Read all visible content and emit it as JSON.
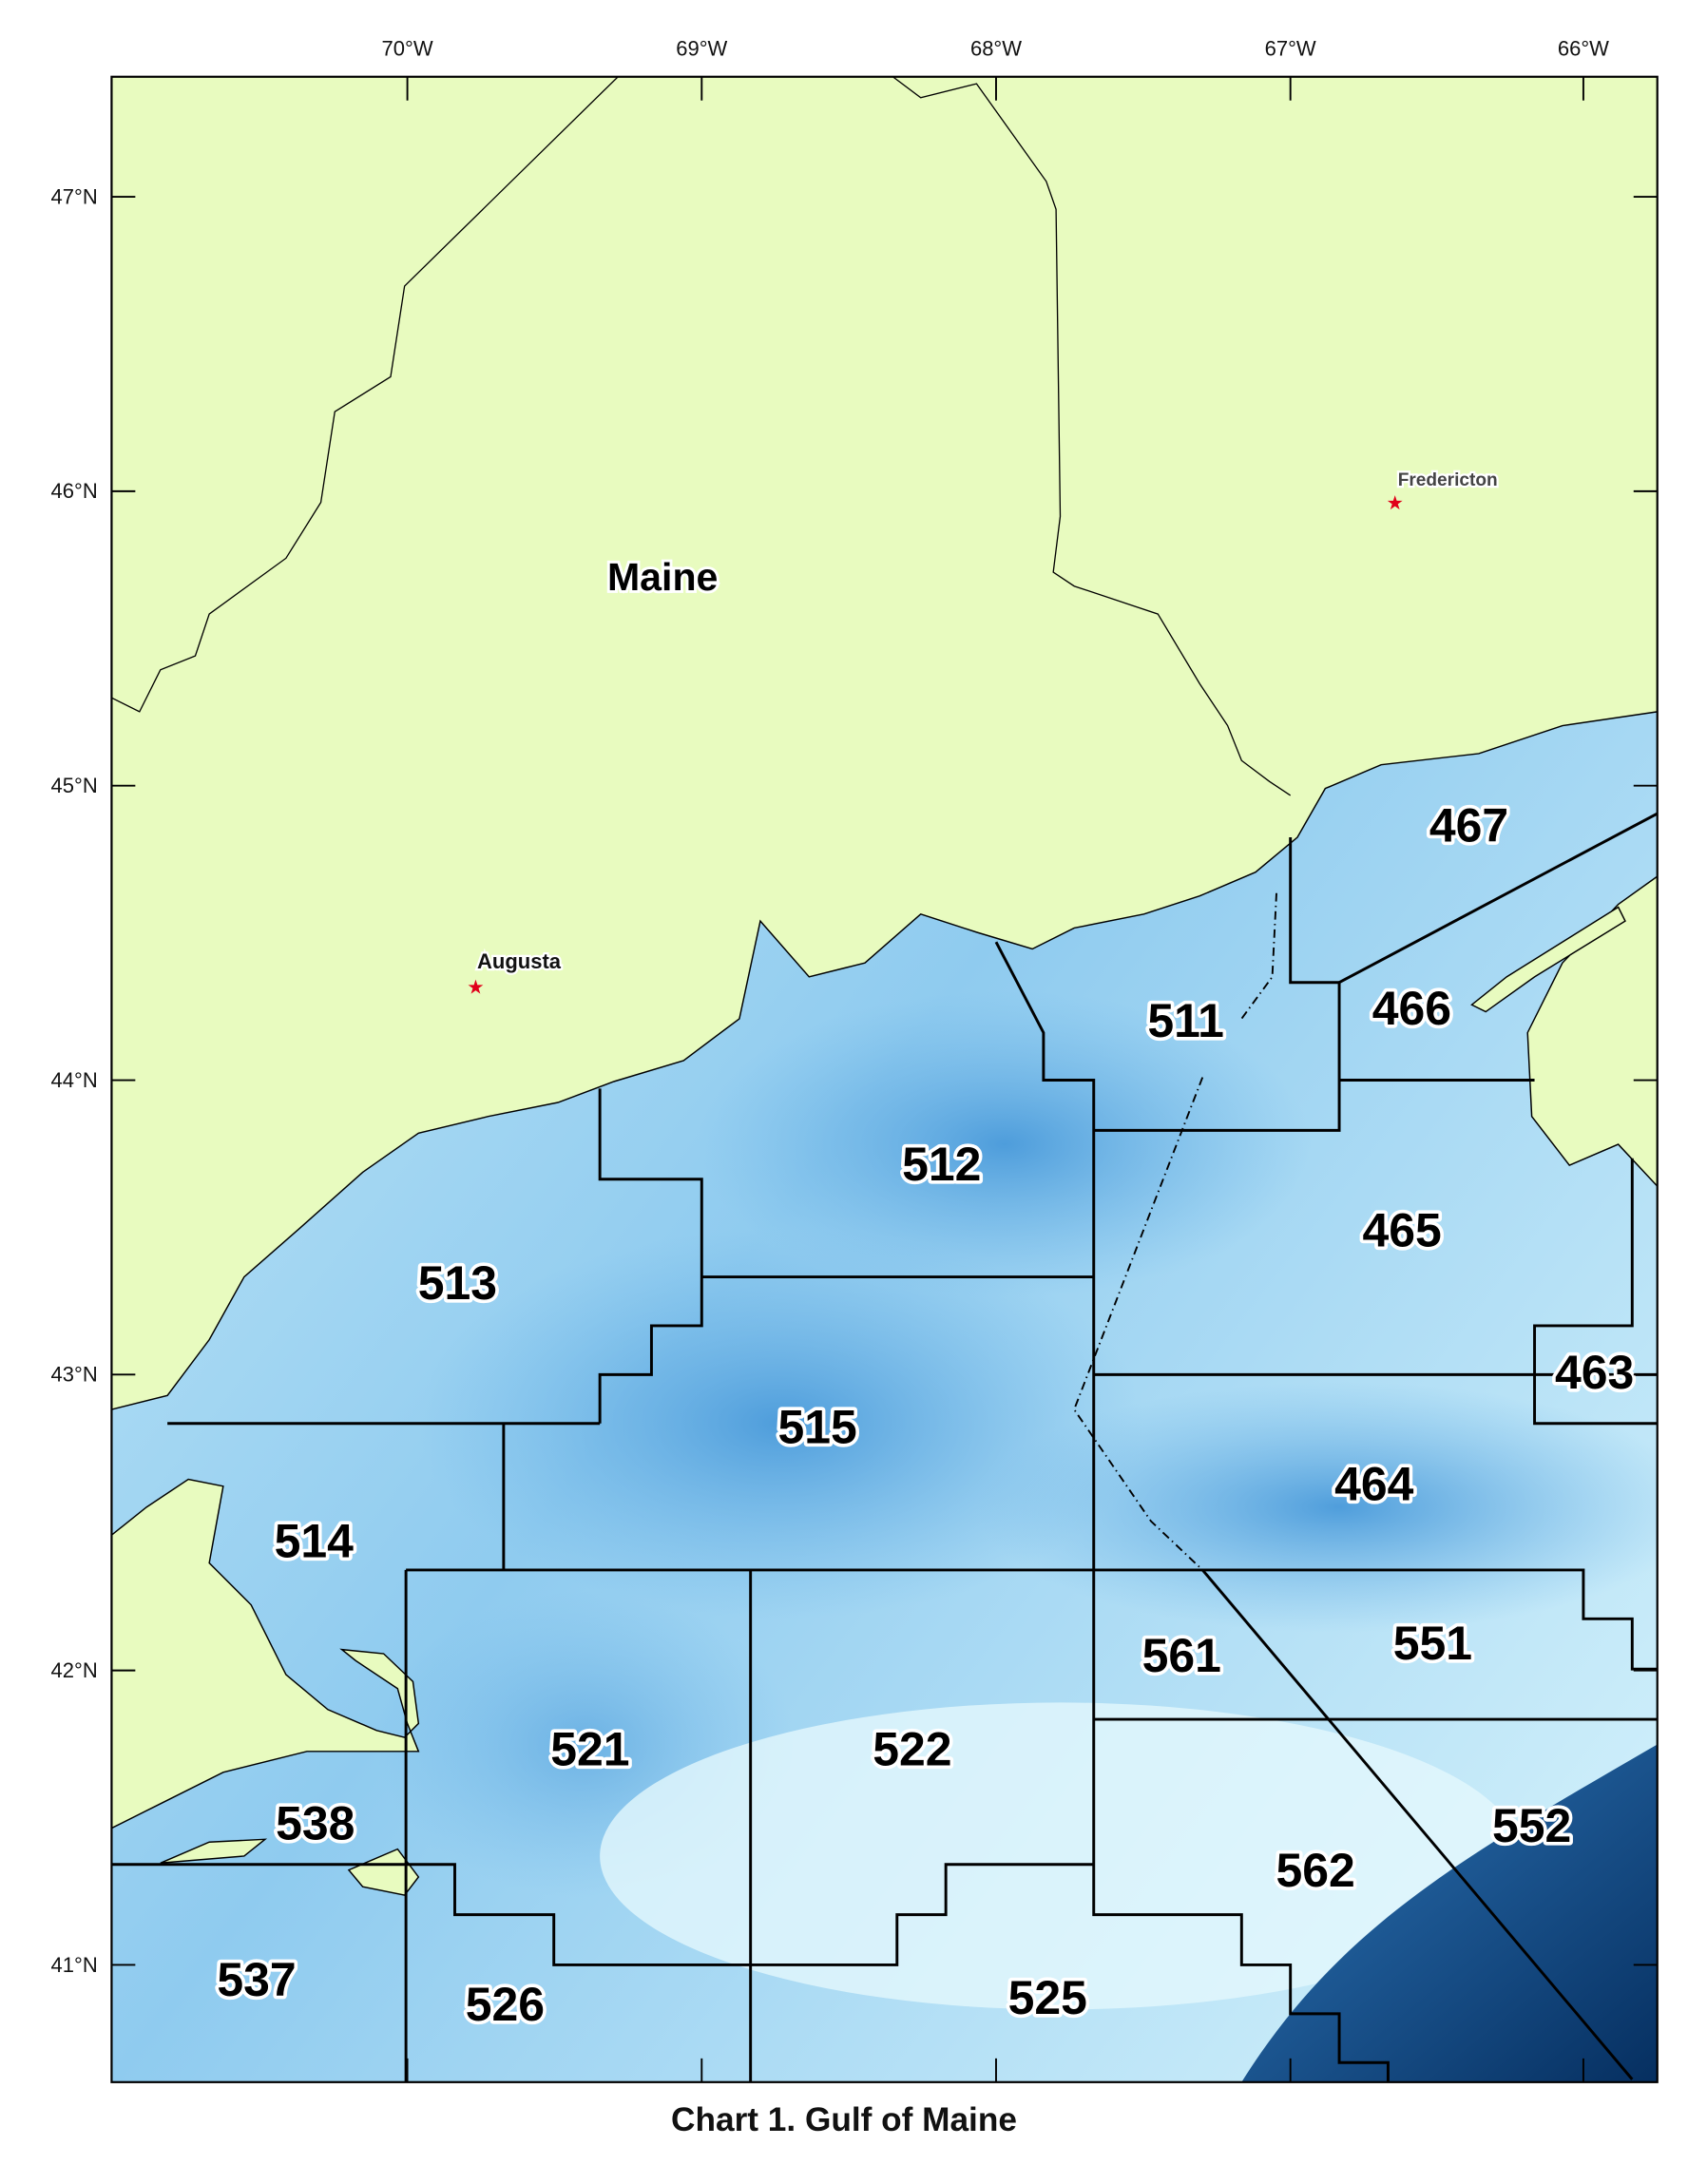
{
  "title": "Chart 1.  Gulf of Maine",
  "axes": {
    "longitude_ticks": [
      "70°W",
      "69°W",
      "68°W",
      "67°W",
      "66°W"
    ],
    "latitude_ticks": [
      "47°N",
      "46°N",
      "45°N",
      "44°N",
      "43°N",
      "42°N",
      "41°N"
    ]
  },
  "place_labels": {
    "state": "Maine",
    "cities": [
      {
        "name": "Augusta",
        "icon": "star-icon",
        "color": "#e0001a"
      },
      {
        "name": "Fredericton",
        "icon": "star-icon",
        "color": "#e0001a"
      }
    ]
  },
  "statistical_areas": [
    "467",
    "466",
    "511",
    "465",
    "512",
    "513",
    "463",
    "515",
    "464",
    "514",
    "561",
    "551",
    "521",
    "522",
    "552",
    "538",
    "562",
    "537",
    "526",
    "525"
  ],
  "colors": {
    "land": "#e8fbbf",
    "shallow_water": "#d4f2fb",
    "deep_water": "#4f9fdc",
    "abyss": "#0a3f78",
    "boundary": "#000000"
  }
}
